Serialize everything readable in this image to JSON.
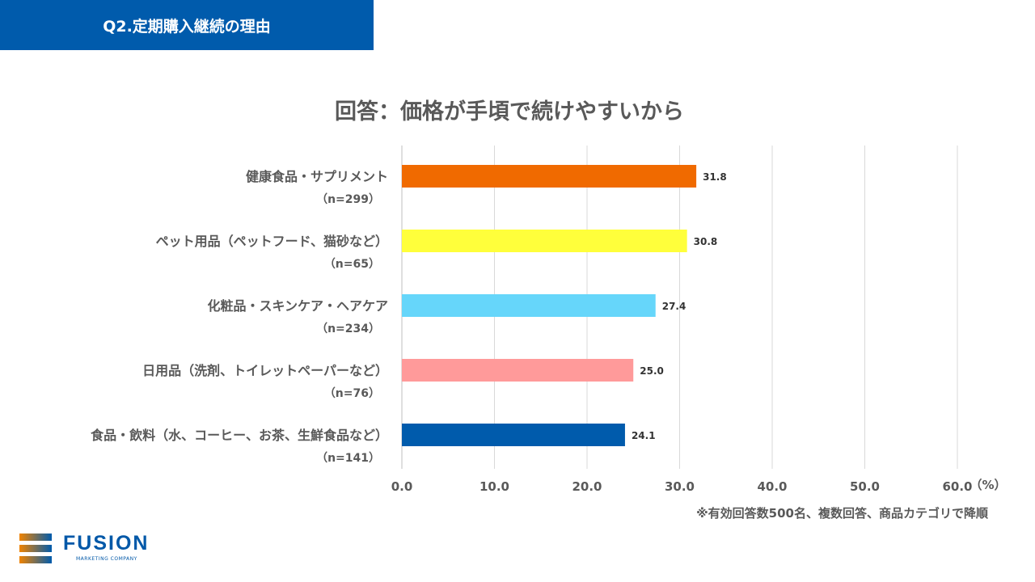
{
  "header": {
    "title": "Q2.定期購入継続の理由"
  },
  "note": "※有効回答数500名、複数回答、商品カテゴリで降順",
  "logo": {
    "name": "FUSION",
    "sub": "MARKETING COMPANY"
  },
  "chart_data": {
    "type": "bar",
    "orientation": "horizontal",
    "title": "回答：価格が手頃で続けやすいから",
    "categories": [
      "健康食品・サプリメント",
      "ペット用品（ペットフード、猫砂など）",
      "化粧品・スキンケア・ヘアケア",
      "日用品（洗剤、トイレットペーパーなど）",
      "食品・飲料（水、コーヒー、お茶、生鮮食品など）"
    ],
    "sample_sizes": [
      "（n=299）",
      "（n=65）",
      "（n=234）",
      "（n=76）",
      "（n=141）"
    ],
    "values": [
      31.8,
      30.8,
      27.4,
      25.0,
      24.1
    ],
    "value_labels": [
      "31.8",
      "30.8",
      "27.4",
      "25.0",
      "24.1"
    ],
    "colors": [
      "#f06a00",
      "#ffff3b",
      "#66d6fa",
      "#ff9a9a",
      "#005bac"
    ],
    "xlim": [
      0,
      60
    ],
    "xticks": [
      "0.0",
      "10.0",
      "20.0",
      "30.0",
      "40.0",
      "50.0",
      "60.0"
    ],
    "xunit": "（%）",
    "grid": true
  }
}
